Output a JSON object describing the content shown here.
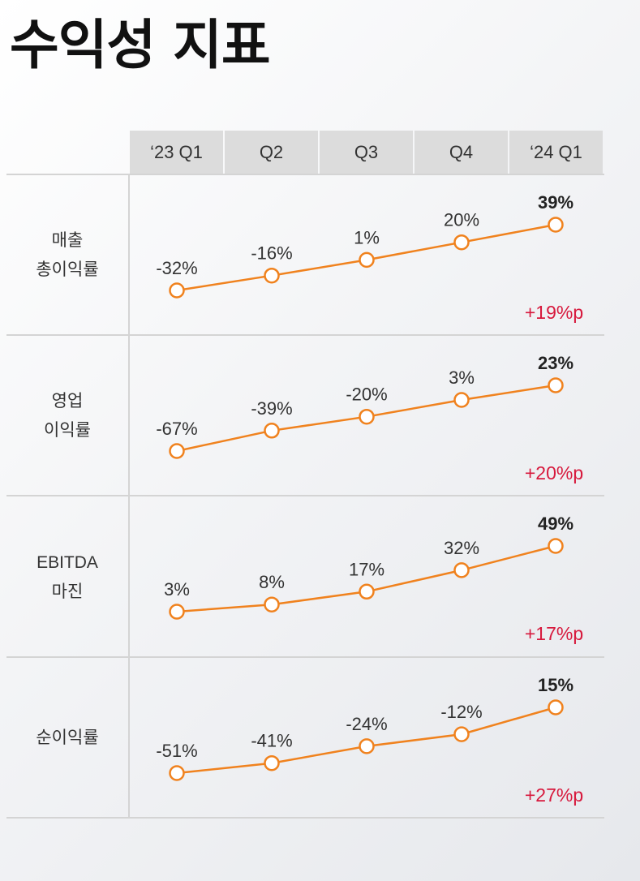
{
  "title": "수익성 지표",
  "header": [
    "‘23 Q1",
    "Q2",
    "Q3",
    "Q4",
    "‘24 Q1"
  ],
  "colors": {
    "line": "#f0821e",
    "delta": "#d7193d"
  },
  "chart_data": {
    "type": "line",
    "categories": [
      "‘23 Q1",
      "Q2",
      "Q3",
      "Q4",
      "‘24 Q1"
    ],
    "series": [
      {
        "name": "매출 총이익률",
        "label_lines": [
          "매출",
          "총이익률"
        ],
        "values": [
          -32,
          -16,
          1,
          20,
          39
        ],
        "labels": [
          "-32%",
          "-16%",
          "1%",
          "20%",
          "39%"
        ],
        "delta": "+19%p"
      },
      {
        "name": "영업 이익률",
        "label_lines": [
          "영업",
          "이익률"
        ],
        "values": [
          -67,
          -39,
          -20,
          3,
          23
        ],
        "labels": [
          "-67%",
          "-39%",
          "-20%",
          "3%",
          "23%"
        ],
        "delta": "+20%p"
      },
      {
        "name": "EBITDA 마진",
        "label_lines": [
          "EBITDA",
          "마진"
        ],
        "values": [
          3,
          8,
          17,
          32,
          49
        ],
        "labels": [
          "3%",
          "8%",
          "17%",
          "32%",
          "49%"
        ],
        "delta": "+17%p"
      },
      {
        "name": "순이익률",
        "label_lines": [
          "순이익률"
        ],
        "values": [
          -51,
          -41,
          -24,
          -12,
          15
        ],
        "labels": [
          "-51%",
          "-41%",
          "-24%",
          "-12%",
          "15%"
        ],
        "delta": "+27%p"
      }
    ]
  }
}
